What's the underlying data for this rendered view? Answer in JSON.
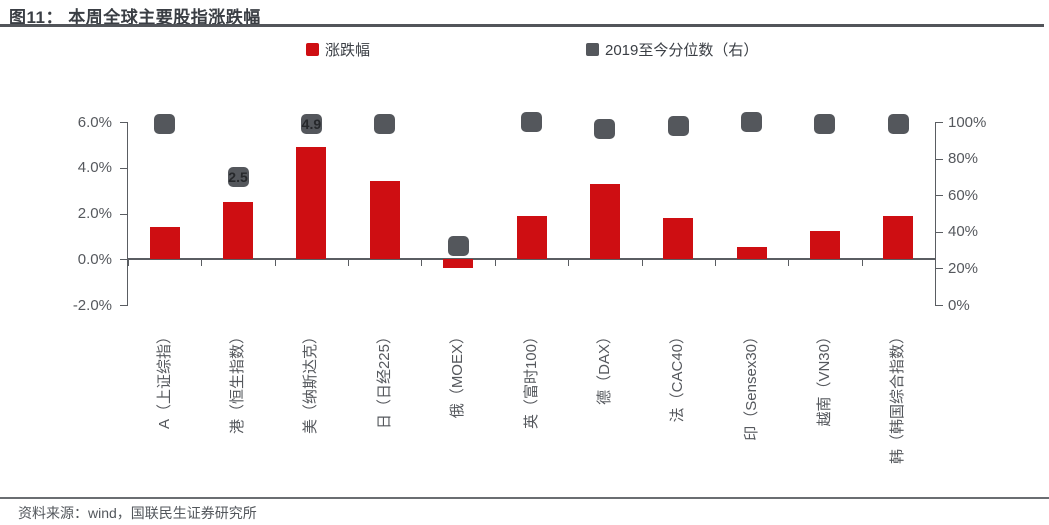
{
  "header": {
    "title": "图11： 本周全球主要股指涨跌幅"
  },
  "legend": [
    {
      "label": "涨跌幅",
      "color": "#CE0E12"
    },
    {
      "label": "2019至今分位数（右）",
      "color": "#54575C"
    }
  ],
  "chart_data": {
    "type": "bar",
    "title": "本周全球主要股指涨跌幅",
    "categories": [
      "A（上证综指）",
      "港（恒生指数）",
      "美（纳斯达克）",
      "日（日经225）",
      "俄（MOEX）",
      "英（富时100）",
      "德（DAX）",
      "法（CAC40）",
      "印（Sensex30）",
      "越南（VN30）",
      "韩（韩国综合指数）"
    ],
    "series": [
      {
        "name": "涨跌幅",
        "type": "bar",
        "axis": "left",
        "color": "#CE0E12",
        "values": [
          1.4,
          2.5,
          4.9,
          3.4,
          -0.4,
          1.9,
          3.3,
          1.8,
          0.55,
          1.25,
          1.9
        ]
      },
      {
        "name": "2019至今分位数（右）",
        "type": "square-marker",
        "axis": "right",
        "color": "#54575C",
        "values": [
          99,
          70,
          99,
          99,
          32,
          100,
          96,
          98,
          100,
          99,
          99
        ]
      }
    ],
    "bar_labels": [
      {
        "index": 1,
        "text": "2.5"
      },
      {
        "index": 2,
        "text": "4.9"
      }
    ],
    "left_axis": {
      "min": -2,
      "max": 6,
      "tick_values": [
        6,
        4,
        2,
        0,
        -2
      ],
      "ticks": [
        "6.0%",
        "4.0%",
        "2.0%",
        "0.0%",
        "-2.0%"
      ]
    },
    "right_axis": {
      "min": 0,
      "max": 100,
      "tick_values": [
        100,
        80,
        60,
        40,
        20,
        0
      ],
      "ticks": [
        "100%",
        "80%",
        "60%",
        "40%",
        "20%",
        "0%"
      ]
    },
    "grid": false,
    "legend_position": "top"
  },
  "footer": {
    "source": "资料来源：wind，国联民生证券研究所"
  }
}
